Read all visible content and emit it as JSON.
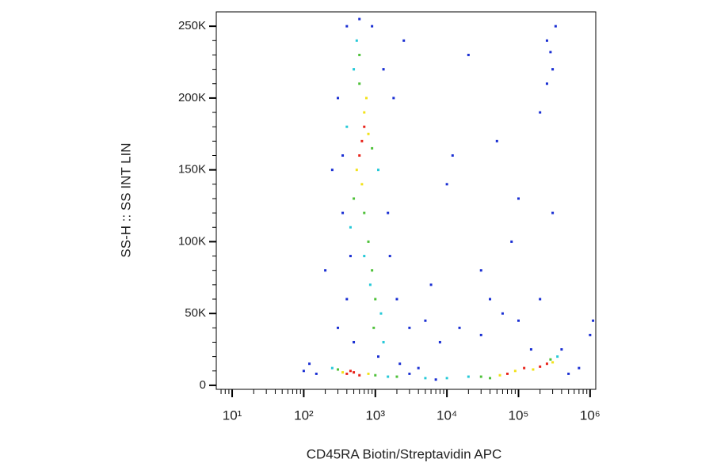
{
  "chart_data": {
    "type": "scatter",
    "xlabel": "CD45RA Biotin/Streptavidin APC",
    "ylabel": "SS-H :: SS INT LIN",
    "xscale": "log",
    "xlim": [
      6,
      1200000
    ],
    "ylim": [
      -2800,
      260000
    ],
    "xticks": [
      {
        "value": 10,
        "label": "10¹"
      },
      {
        "value": 100,
        "label": "10²"
      },
      {
        "value": 1000,
        "label": "10³"
      },
      {
        "value": 10000,
        "label": "10⁴"
      },
      {
        "value": 100000,
        "label": "10⁵"
      },
      {
        "value": 1000000,
        "label": "10⁶"
      }
    ],
    "xminorticks": [
      7,
      8,
      9,
      20,
      30,
      40,
      50,
      60,
      70,
      80,
      90,
      200,
      300,
      400,
      500,
      600,
      700,
      800,
      900,
      2000,
      3000,
      4000,
      5000,
      6000,
      7000,
      8000,
      9000,
      20000,
      30000,
      40000,
      50000,
      60000,
      70000,
      80000,
      90000,
      200000,
      300000,
      400000,
      500000,
      600000,
      700000,
      800000,
      900000
    ],
    "yticks": [
      {
        "value": 0,
        "label": "0"
      },
      {
        "value": 50000,
        "label": "50K"
      },
      {
        "value": 100000,
        "label": "100K"
      },
      {
        "value": 150000,
        "label": "150K"
      },
      {
        "value": 200000,
        "label": "200K"
      },
      {
        "value": 250000,
        "label": "250K"
      }
    ],
    "yminorticks": [
      10000,
      20000,
      30000,
      40000,
      60000,
      70000,
      80000,
      90000,
      110000,
      120000,
      130000,
      140000,
      160000,
      170000,
      180000,
      190000,
      210000,
      220000,
      230000,
      240000
    ],
    "series": [
      {
        "color": "#1a2fd3",
        "x": [
          300,
          350,
          400,
          450,
          1500,
          1800,
          2500,
          600,
          900,
          1300,
          400,
          350,
          1600,
          2000,
          3000,
          5000,
          8000,
          15000,
          30000,
          60000,
          100000,
          200000,
          150000,
          400000,
          1000000,
          1100000,
          100,
          120,
          150,
          3000,
          7000,
          250000,
          300000,
          200000,
          250000,
          80000,
          20000,
          10000,
          50000,
          100000,
          300000,
          30000,
          300,
          200,
          250,
          500,
          1100,
          2200,
          4000,
          700000,
          500000,
          6000,
          12000,
          40000,
          280000,
          330000
        ],
        "values": [
          200000,
          160000,
          250000,
          90000,
          120000,
          200000,
          240000,
          255000,
          250000,
          220000,
          60000,
          120000,
          90000,
          60000,
          40000,
          45000,
          30000,
          40000,
          35000,
          50000,
          45000,
          60000,
          25000,
          25000,
          35000,
          45000,
          10000,
          15000,
          8000,
          8000,
          4000,
          240000,
          220000,
          190000,
          210000,
          100000,
          230000,
          140000,
          170000,
          130000,
          120000,
          80000,
          40000,
          80000,
          150000,
          30000,
          20000,
          15000,
          12000,
          12000,
          8000,
          70000,
          160000,
          60000,
          232000,
          250000
        ]
      },
      {
        "color": "#26c9d8",
        "x": [
          250,
          1500,
          5000,
          10000,
          20000,
          350000,
          500,
          1100,
          450,
          550,
          700,
          1200,
          1300,
          850,
          400
        ],
        "values": [
          12000,
          6000,
          5000,
          5000,
          6000,
          20000,
          220000,
          150000,
          110000,
          240000,
          90000,
          50000,
          30000,
          70000,
          180000
        ]
      },
      {
        "color": "#4fc13a",
        "x": [
          300,
          1000,
          2000,
          30000,
          40000,
          280000,
          600,
          900,
          500,
          700,
          800,
          900,
          1000,
          600,
          950
        ],
        "values": [
          11000,
          7000,
          6000,
          6000,
          5000,
          18000,
          210000,
          165000,
          130000,
          120000,
          100000,
          80000,
          60000,
          230000,
          40000
        ]
      },
      {
        "color": "#f2e21a",
        "x": [
          350,
          800,
          55000,
          90000,
          160000,
          300000,
          700,
          550,
          800,
          650,
          750
        ],
        "values": [
          9000,
          8000,
          7000,
          10000,
          11000,
          16000,
          190000,
          150000,
          175000,
          140000,
          200000
        ]
      },
      {
        "color": "#e8241b",
        "x": [
          400,
          500,
          600,
          450,
          70000,
          120000,
          200000,
          250000,
          650,
          700,
          600
        ],
        "values": [
          8000,
          9000,
          7000,
          10000,
          8000,
          12000,
          13000,
          15000,
          170000,
          180000,
          160000
        ]
      }
    ]
  }
}
